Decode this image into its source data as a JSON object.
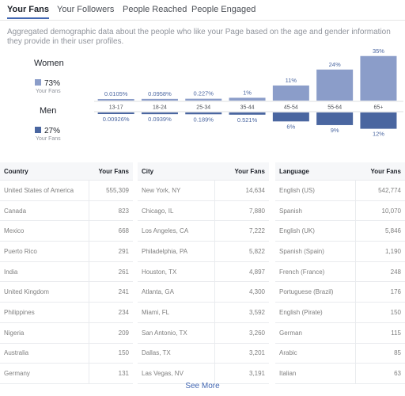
{
  "tabs": [
    "Your Fans",
    "Your Followers",
    "People Reached",
    "People Engaged"
  ],
  "description": "Aggregated demographic data about the people who like your Page based on the age and gender information they provide in their user profiles.",
  "chart_data": {
    "type": "bar",
    "categories": [
      "13-17",
      "18-24",
      "25-34",
      "35-44",
      "45-54",
      "55-64",
      "65+"
    ],
    "series": [
      {
        "name": "Women",
        "color": "#8b9dc9",
        "total": {
          "value": 73,
          "label": "73%"
        },
        "total_caption": "Your Fans",
        "values": [
          0.0105,
          0.0958,
          0.227,
          1,
          11,
          24,
          35
        ],
        "value_labels": [
          "0.0105%",
          "0.0958%",
          "0.227%",
          "1%",
          "11%",
          "24%",
          "35%"
        ]
      },
      {
        "name": "Men",
        "color": "#4a66a0",
        "total": {
          "value": 27,
          "label": "27%"
        },
        "total_caption": "Your Fans",
        "values": [
          0.00926,
          0.0939,
          0.189,
          0.521,
          6,
          9,
          12
        ],
        "value_labels": [
          "0.00926%",
          "0.0939%",
          "0.189%",
          "0.521%",
          "6%",
          "9%",
          "12%"
        ]
      }
    ]
  },
  "tables": [
    {
      "header": [
        "Country",
        "Your Fans"
      ],
      "rows": [
        [
          "United States of America",
          "555,309"
        ],
        [
          "Canada",
          "823"
        ],
        [
          "Mexico",
          "668"
        ],
        [
          "Puerto Rico",
          "291"
        ],
        [
          "India",
          "261"
        ],
        [
          "United Kingdom",
          "241"
        ],
        [
          "Philippines",
          "234"
        ],
        [
          "Nigeria",
          "209"
        ],
        [
          "Australia",
          "150"
        ],
        [
          "Germany",
          "131"
        ]
      ]
    },
    {
      "header": [
        "City",
        "Your Fans"
      ],
      "rows": [
        [
          "New York, NY",
          "14,634"
        ],
        [
          "Chicago, IL",
          "7,880"
        ],
        [
          "Los Angeles, CA",
          "7,222"
        ],
        [
          "Philadelphia, PA",
          "5,822"
        ],
        [
          "Houston, TX",
          "4,897"
        ],
        [
          "Atlanta, GA",
          "4,300"
        ],
        [
          "Miami, FL",
          "3,592"
        ],
        [
          "San Antonio, TX",
          "3,260"
        ],
        [
          "Dallas, TX",
          "3,201"
        ],
        [
          "Las Vegas, NV",
          "3,191"
        ]
      ]
    },
    {
      "header": [
        "Language",
        "Your Fans"
      ],
      "rows": [
        [
          "English (US)",
          "542,774"
        ],
        [
          "Spanish",
          "10,070"
        ],
        [
          "English (UK)",
          "5,846"
        ],
        [
          "Spanish (Spain)",
          "1,190"
        ],
        [
          "French (France)",
          "248"
        ],
        [
          "Portuguese (Brazil)",
          "176"
        ],
        [
          "English (Pirate)",
          "150"
        ],
        [
          "German",
          "115"
        ],
        [
          "Arabic",
          "85"
        ],
        [
          "Italian",
          "63"
        ]
      ]
    }
  ],
  "see_more": "See More"
}
